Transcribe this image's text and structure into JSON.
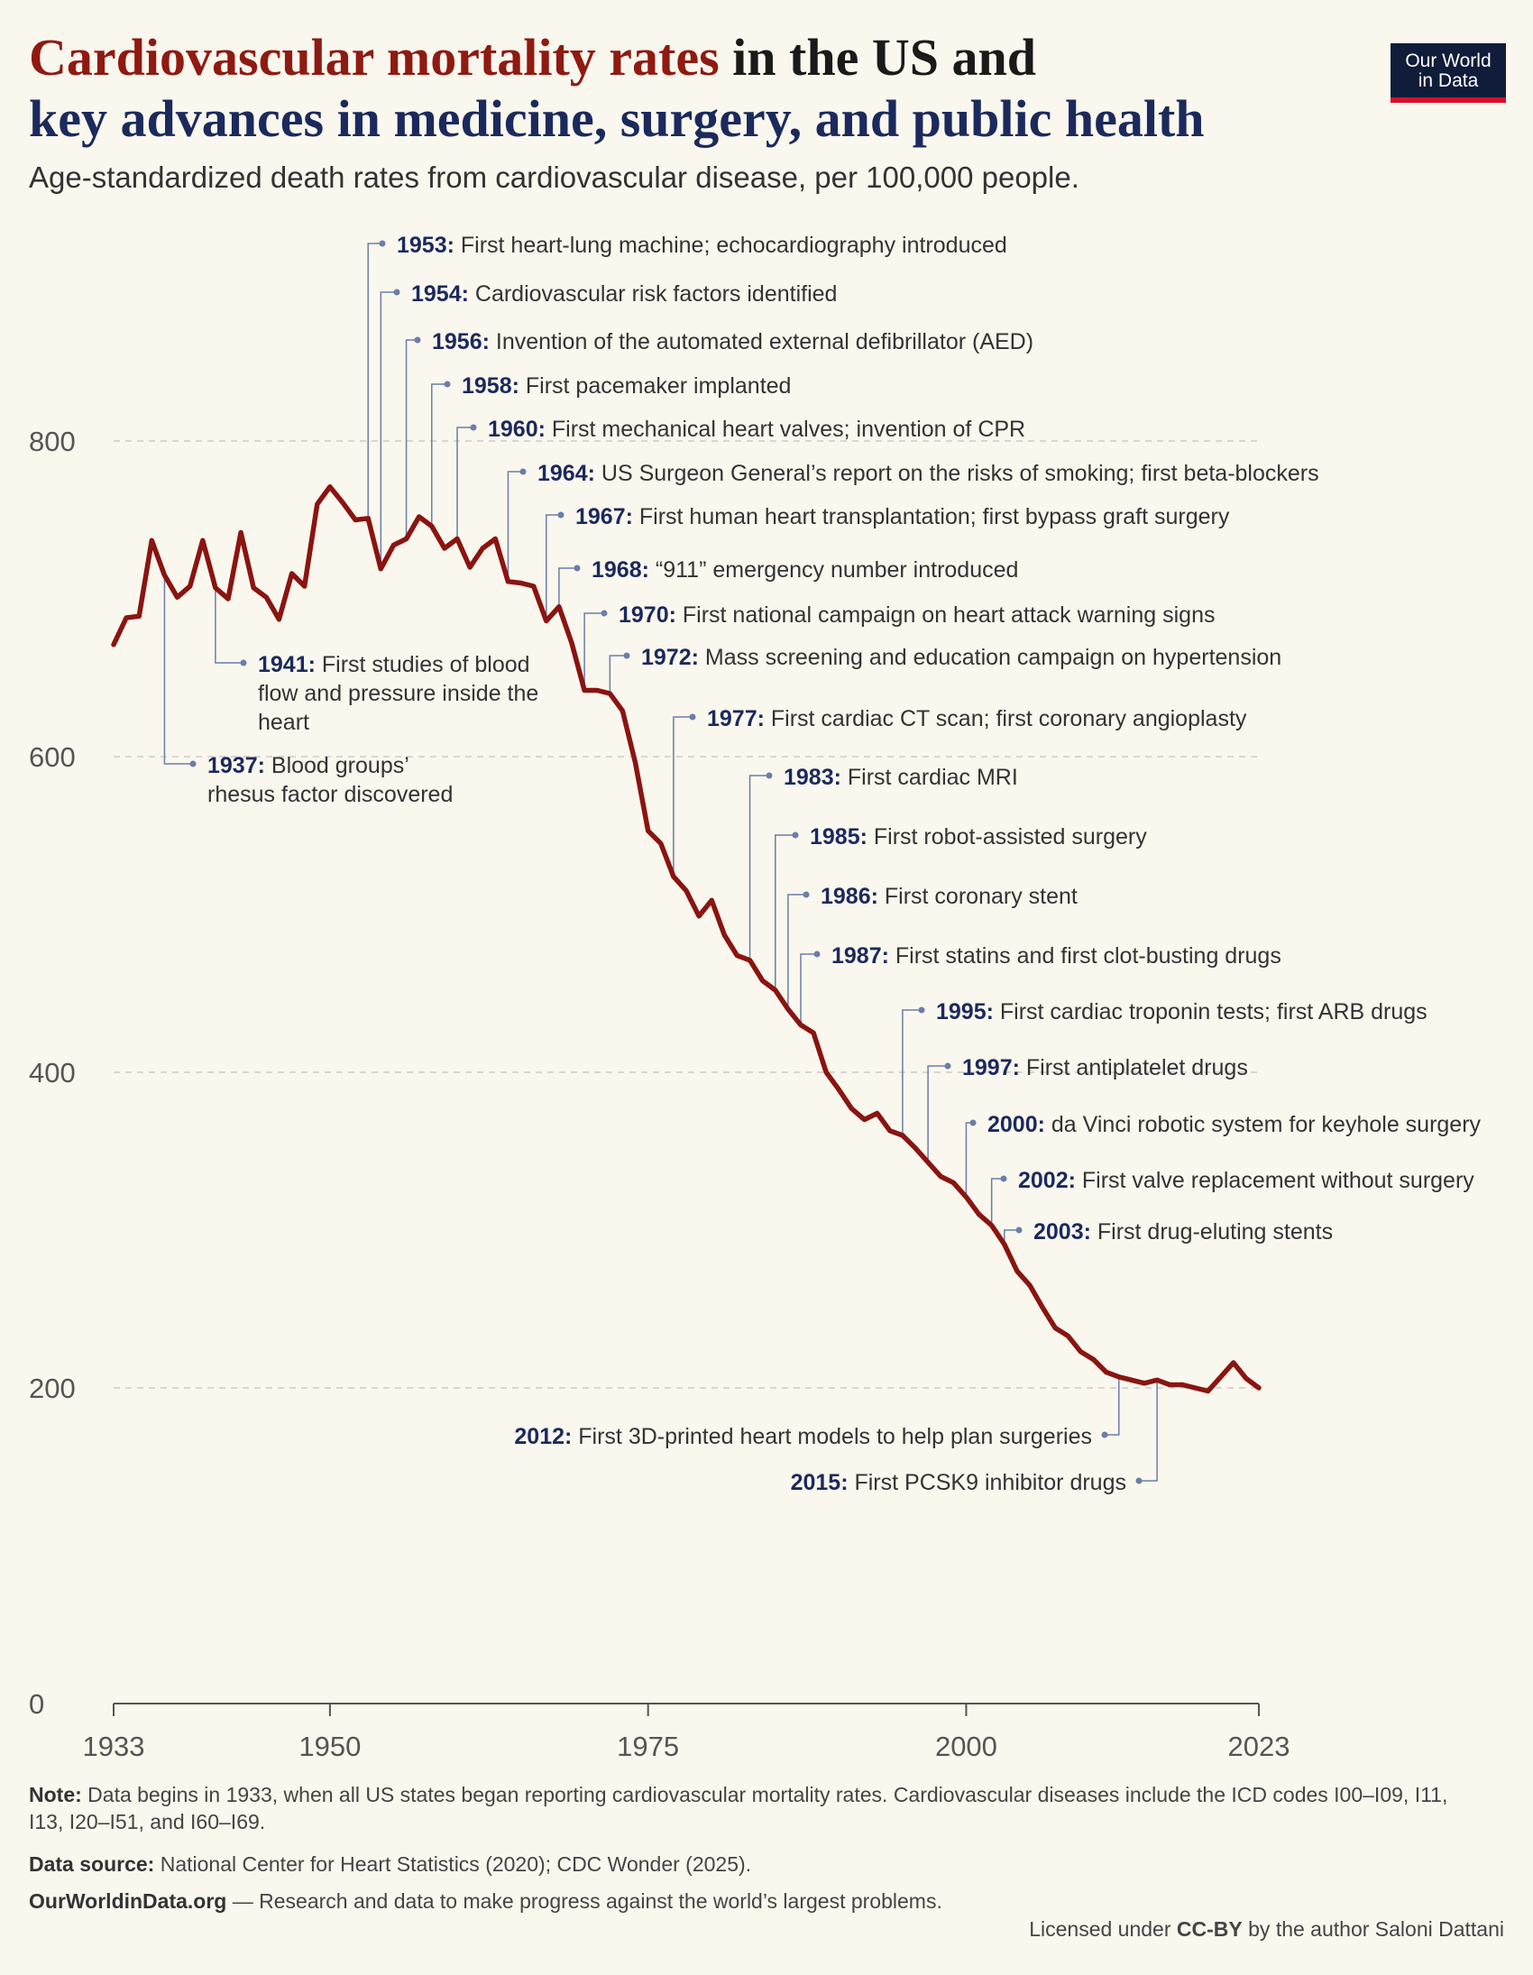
{
  "header": {
    "title_part1": "Cardiovascular mortality rates",
    "title_part2": " in the US and",
    "title_part3": "key advances in medicine, surgery, and public health",
    "subtitle": "Age-standardized death rates from cardiovascular disease, per 100,000 people."
  },
  "logo": {
    "line1": "Our World",
    "line2": "in Data"
  },
  "colors": {
    "line": "#8a1410",
    "annotation": "#6b7ea8",
    "grid": "#cccccc",
    "label_text": "#1b2a5c"
  },
  "chart_data": {
    "type": "line",
    "title": "Cardiovascular mortality rates in the US",
    "ylabel": "Age-standardized death rates per 100,000 people",
    "xlim": [
      1933,
      2023
    ],
    "ylim": [
      0,
      800
    ],
    "yticks": [
      0,
      200,
      400,
      600,
      800
    ],
    "xticks": [
      1933,
      1950,
      1975,
      2000,
      2023
    ],
    "series": [
      {
        "name": "Cardiovascular mortality rate",
        "x": [
          1933,
          1934,
          1935,
          1936,
          1937,
          1938,
          1939,
          1940,
          1941,
          1942,
          1943,
          1944,
          1945,
          1946,
          1947,
          1948,
          1949,
          1950,
          1951,
          1952,
          1953,
          1954,
          1955,
          1956,
          1957,
          1958,
          1959,
          1960,
          1961,
          1962,
          1963,
          1964,
          1965,
          1966,
          1967,
          1968,
          1969,
          1970,
          1971,
          1972,
          1973,
          1974,
          1975,
          1976,
          1977,
          1978,
          1979,
          1980,
          1981,
          1982,
          1983,
          1984,
          1985,
          1986,
          1987,
          1988,
          1989,
          1990,
          1991,
          1992,
          1993,
          1994,
          1995,
          1996,
          1997,
          1998,
          1999,
          2000,
          2001,
          2002,
          2003,
          2004,
          2005,
          2006,
          2007,
          2008,
          2009,
          2010,
          2011,
          2012,
          2013,
          2014,
          2015,
          2016,
          2017,
          2018,
          2019,
          2020,
          2021,
          2022,
          2023
        ],
        "values": [
          671,
          688,
          689,
          737,
          715,
          701,
          708,
          737,
          707,
          700,
          742,
          707,
          701,
          687,
          716,
          708,
          760,
          771,
          761,
          750,
          751,
          719,
          734,
          738,
          752,
          746,
          732,
          738,
          720,
          732,
          738,
          711,
          710,
          708,
          686,
          695,
          672,
          642,
          642,
          640,
          629,
          596,
          553,
          545,
          524,
          515,
          499,
          509,
          487,
          474,
          471,
          458,
          452,
          440,
          430,
          425,
          400,
          389,
          377,
          370,
          374,
          363,
          360,
          352,
          343,
          334,
          330,
          321,
          310,
          303,
          291,
          274,
          265,
          251,
          238,
          233,
          223,
          218,
          210,
          207,
          205,
          203,
          205,
          202,
          202,
          200,
          198,
          207,
          216,
          206,
          200
        ]
      }
    ],
    "annotations": [
      {
        "year": "1937:",
        "text": "Blood groups’",
        "text2": "rhesus factor discovered"
      },
      {
        "year": "1941:",
        "text": "First studies of blood",
        "text2": "flow and pressure inside the",
        "text3": "heart"
      },
      {
        "year": "1953:",
        "text": "First heart-lung machine; echocardiography introduced"
      },
      {
        "year": "1954:",
        "text": "Cardiovascular risk factors identified"
      },
      {
        "year": "1956:",
        "text": "Invention of the automated external defibrillator (AED)"
      },
      {
        "year": "1958:",
        "text": "First pacemaker implanted"
      },
      {
        "year": "1960:",
        "text": "First mechanical heart valves; invention of CPR"
      },
      {
        "year": "1964:",
        "text": "US Surgeon General’s report on the risks of smoking; first beta-blockers"
      },
      {
        "year": "1967:",
        "text": "First human heart transplantation; first bypass graft surgery"
      },
      {
        "year": "1968:",
        "text": "“911” emergency number introduced"
      },
      {
        "year": "1970:",
        "text": "First national campaign on heart attack warning signs"
      },
      {
        "year": "1972:",
        "text": "Mass screening and education campaign on hypertension"
      },
      {
        "year": "1977:",
        "text": "First cardiac CT scan; first coronary angioplasty"
      },
      {
        "year": "1983:",
        "text": "First cardiac MRI"
      },
      {
        "year": "1985:",
        "text": "First robot-assisted surgery"
      },
      {
        "year": "1986:",
        "text": "First coronary stent"
      },
      {
        "year": "1987:",
        "text": "First statins and first clot-busting drugs"
      },
      {
        "year": "1995:",
        "text": "First cardiac troponin tests; first ARB drugs"
      },
      {
        "year": "1997:",
        "text": "First antiplatelet drugs"
      },
      {
        "year": "2000:",
        "text": "da Vinci robotic system for keyhole surgery"
      },
      {
        "year": "2002:",
        "text": "First valve replacement without surgery"
      },
      {
        "year": "2003:",
        "text": "First drug-eluting stents"
      },
      {
        "year": "2012:",
        "text": "First 3D-printed heart models to help plan surgeries"
      },
      {
        "year": "2015:",
        "text": "First PCSK9 inhibitor drugs"
      }
    ]
  },
  "footer": {
    "note_label": "Note:",
    "note_text": " Data begins in 1933, when all US states began reporting cardiovascular mortality rates. Cardiovascular diseases include the ICD codes I00–I09, I11, I13, I20–I51, and I60–I69.",
    "source_label": "Data source:",
    "source_text": " National Center for Heart Statistics (2020); CDC Wonder (2025).",
    "owid_label": "OurWorldinData.org",
    "owid_text": " — Research and data to make progress against the world’s largest problems.",
    "license_pre": "Licensed under ",
    "license_bold": "CC-BY",
    "license_post": " by the author Saloni Dattani"
  }
}
